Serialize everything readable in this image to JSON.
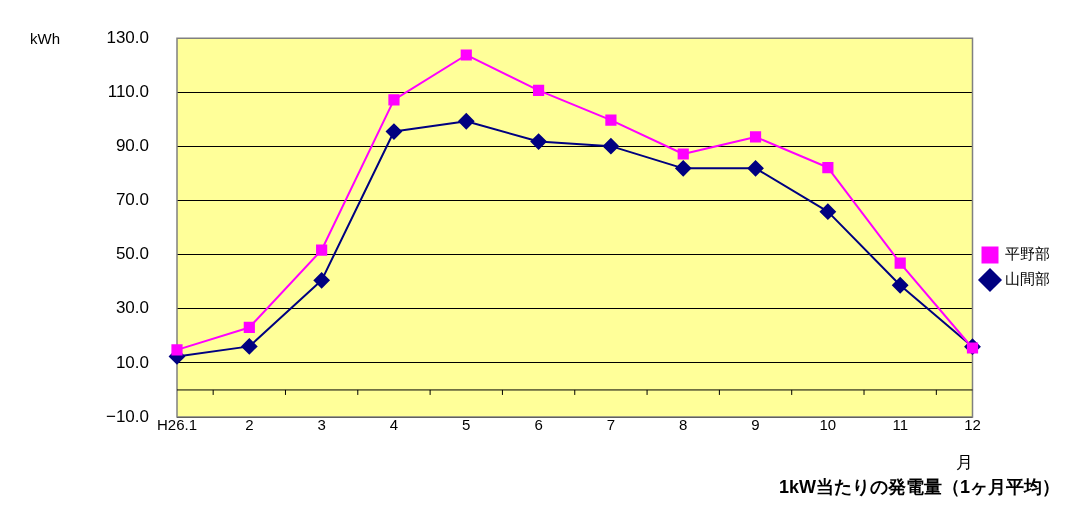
{
  "chart_data": {
    "type": "line",
    "title": "1kW当たりの発電量（1ヶ月平均）",
    "xlabel": "月",
    "ylabel": "kWh",
    "categories": [
      "H26.1",
      "2",
      "3",
      "4",
      "5",
      "6",
      "7",
      "8",
      "9",
      "10",
      "11",
      "12"
    ],
    "series": [
      {
        "name": "山間部",
        "color": "#000080",
        "marker": "diamond",
        "values": [
          12.4,
          16.1,
          40.5,
          95.5,
          99.3,
          91.8,
          90.1,
          81.9,
          81.9,
          65.9,
          38.7,
          16.0
        ]
      },
      {
        "name": "平野部",
        "color": "#ff00ff",
        "marker": "square",
        "values": [
          14.8,
          23.1,
          51.7,
          107.2,
          123.8,
          110.7,
          99.7,
          87.2,
          93.5,
          82.2,
          46.9,
          15.5
        ]
      }
    ],
    "ylim": [
      -10,
      130
    ],
    "yticks": [
      {
        "value": -10,
        "label": "−10.0"
      },
      {
        "value": 10,
        "label": "10.0"
      },
      {
        "value": 30,
        "label": "30.0"
      },
      {
        "value": 50,
        "label": "50.0"
      },
      {
        "value": 70,
        "label": "70.0"
      },
      {
        "value": 90,
        "label": "90.0"
      },
      {
        "value": 110,
        "label": "110.0"
      },
      {
        "value": 130,
        "label": "130.0"
      }
    ],
    "grid": "y",
    "legend": "right"
  }
}
